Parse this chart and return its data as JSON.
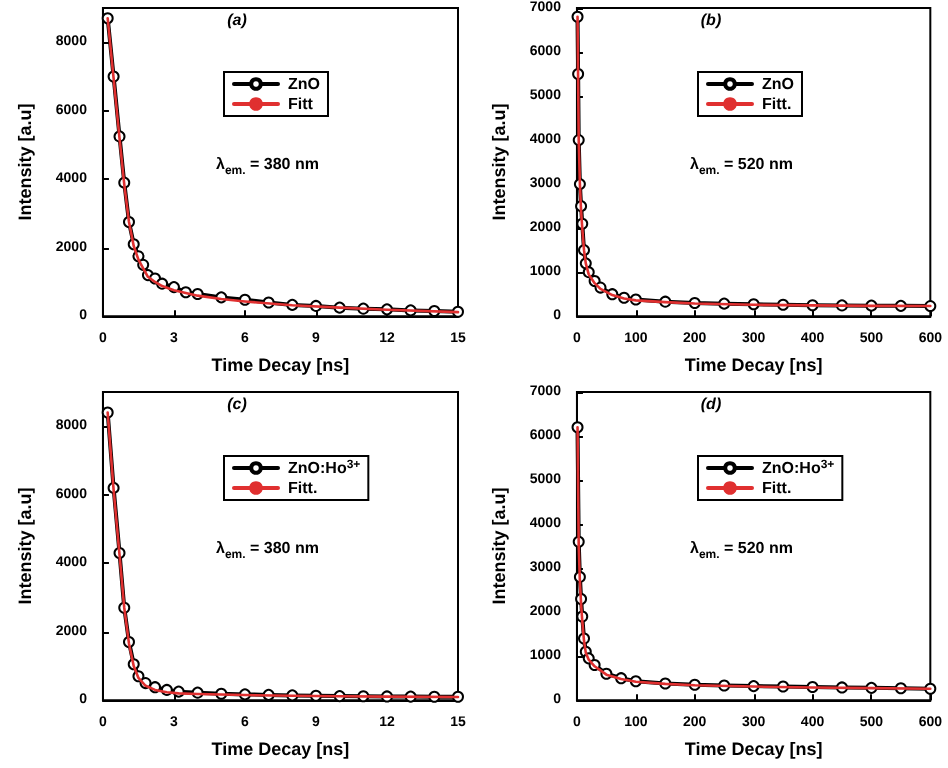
{
  "chart_data": [
    {
      "type": "line",
      "title": "(a)",
      "xlabel": "Time Decay [ns]",
      "ylabel": "Intensity [a.u]",
      "annotations": [
        "λ$_{em.}$ = 380 nm"
      ],
      "xlim": [
        0,
        15
      ],
      "xticks": [
        0,
        3,
        6,
        9,
        12,
        15
      ],
      "ylim": [
        0,
        9000
      ],
      "yticks": [
        0,
        2000,
        4000,
        6000,
        8000
      ],
      "legend": "top",
      "grid": false,
      "series": [
        {
          "name": "ZnO",
          "color": "#000000",
          "marker": "circle",
          "x": [
            0.2,
            0.45,
            0.7,
            0.9,
            1.1,
            1.3,
            1.5,
            1.7,
            1.9,
            2.2,
            2.5,
            3,
            3.5,
            4,
            5,
            6,
            7,
            8,
            9,
            10,
            11,
            12,
            13,
            14,
            15
          ],
          "values": [
            8700,
            7000,
            5250,
            3900,
            2750,
            2100,
            1750,
            1500,
            1200,
            1100,
            950,
            850,
            700,
            650,
            550,
            480,
            400,
            330,
            300,
            250,
            220,
            200,
            170,
            150,
            130
          ]
        },
        {
          "name": "Fitt",
          "color": "#e03030",
          "marker": "none",
          "x": [
            0.2,
            0.45,
            0.7,
            0.9,
            1.1,
            1.3,
            1.5,
            1.7,
            1.9,
            2.2,
            2.5,
            3,
            4,
            5,
            6,
            8,
            10,
            12,
            15
          ],
          "values": [
            8700,
            6950,
            5200,
            3850,
            2750,
            2050,
            1650,
            1400,
            1150,
            1000,
            880,
            760,
            600,
            500,
            430,
            320,
            250,
            190,
            120
          ]
        }
      ]
    },
    {
      "type": "line",
      "title": "(b)",
      "xlabel": "Time Decay [ns]",
      "ylabel": "Intensity [a.u]",
      "annotations": [
        "λ$_{em.}$ = 520 nm"
      ],
      "xlim": [
        0,
        600
      ],
      "xticks": [
        0,
        100,
        200,
        300,
        400,
        500,
        600
      ],
      "ylim": [
        0,
        7000
      ],
      "yticks": [
        0,
        1000,
        2000,
        3000,
        4000,
        5000,
        6000,
        7000
      ],
      "legend": "top",
      "grid": false,
      "series": [
        {
          "name": "ZnO",
          "color": "#000000",
          "marker": "circle",
          "x": [
            1,
            2,
            3,
            5,
            7,
            9,
            12,
            15,
            20,
            30,
            40,
            60,
            80,
            100,
            150,
            200,
            250,
            300,
            350,
            400,
            450,
            500,
            550,
            600
          ],
          "values": [
            6800,
            5500,
            4000,
            3000,
            2500,
            2100,
            1500,
            1200,
            1000,
            800,
            650,
            500,
            420,
            380,
            330,
            300,
            285,
            270,
            260,
            250,
            245,
            240,
            235,
            230
          ]
        },
        {
          "name": "Fitt.",
          "color": "#e03030",
          "marker": "none",
          "x": [
            1,
            2,
            3,
            5,
            7,
            9,
            12,
            15,
            20,
            30,
            40,
            60,
            80,
            100,
            150,
            200,
            300,
            400,
            500,
            600
          ],
          "values": [
            6800,
            5400,
            4000,
            3000,
            2400,
            2000,
            1500,
            1200,
            950,
            750,
            620,
            480,
            400,
            360,
            320,
            290,
            260,
            245,
            235,
            230
          ]
        }
      ]
    },
    {
      "type": "line",
      "title": "(c)",
      "xlabel": "Time Decay [ns]",
      "ylabel": "Intensity [a.u]",
      "annotations": [
        "λ$_{em.}$ = 380 nm"
      ],
      "xlim": [
        0,
        15
      ],
      "xticks": [
        0,
        3,
        6,
        9,
        12,
        15
      ],
      "ylim": [
        0,
        9000
      ],
      "yticks": [
        0,
        2000,
        4000,
        6000,
        8000
      ],
      "legend": "top",
      "grid": false,
      "series": [
        {
          "name": "ZnO:Ho$^{3+}$",
          "color": "#000000",
          "marker": "circle",
          "x": [
            0.2,
            0.45,
            0.7,
            0.9,
            1.1,
            1.3,
            1.5,
            1.8,
            2.2,
            2.7,
            3.2,
            4,
            5,
            6,
            7,
            8,
            9,
            10,
            11,
            12,
            13,
            14,
            15
          ],
          "values": [
            8400,
            6200,
            4300,
            2700,
            1700,
            1050,
            700,
            500,
            380,
            300,
            250,
            220,
            190,
            170,
            155,
            140,
            130,
            120,
            115,
            110,
            105,
            100,
            100
          ]
        },
        {
          "name": "Fitt.",
          "color": "#e03030",
          "marker": "none",
          "x": [
            0.2,
            0.45,
            0.7,
            0.9,
            1.1,
            1.3,
            1.5,
            1.8,
            2.2,
            2.7,
            3.2,
            4,
            6,
            8,
            10,
            12,
            15
          ],
          "values": [
            8400,
            6150,
            4250,
            2700,
            1650,
            1000,
            650,
            420,
            300,
            230,
            200,
            180,
            150,
            130,
            115,
            105,
            95
          ]
        }
      ]
    },
    {
      "type": "line",
      "title": "(d)",
      "xlabel": "Time Decay [ns]",
      "ylabel": "Intensity [a.u]",
      "annotations": [
        "λ$_{em.}$ = 520 nm"
      ],
      "xlim": [
        0,
        600
      ],
      "xticks": [
        0,
        100,
        200,
        300,
        400,
        500,
        600
      ],
      "ylim": [
        0,
        7000
      ],
      "yticks": [
        0,
        1000,
        2000,
        3000,
        4000,
        5000,
        6000,
        7000
      ],
      "legend": "top",
      "grid": false,
      "series": [
        {
          "name": "ZnO:Ho$^{3+}$",
          "color": "#000000",
          "marker": "circle",
          "x": [
            1,
            3,
            5,
            7,
            9,
            12,
            15,
            20,
            30,
            50,
            75,
            100,
            150,
            200,
            250,
            300,
            350,
            400,
            450,
            500,
            550,
            600
          ],
          "values": [
            6200,
            3600,
            2800,
            2300,
            1900,
            1400,
            1100,
            950,
            800,
            600,
            500,
            430,
            380,
            350,
            335,
            320,
            310,
            300,
            290,
            280,
            270,
            260
          ]
        },
        {
          "name": "Fitt.",
          "color": "#e03030",
          "marker": "none",
          "x": [
            1,
            3,
            5,
            7,
            9,
            12,
            15,
            20,
            30,
            50,
            75,
            100,
            150,
            200,
            300,
            400,
            500,
            600
          ],
          "values": [
            6200,
            3500,
            2700,
            2200,
            1800,
            1350,
            1080,
            920,
            770,
            580,
            480,
            420,
            370,
            340,
            310,
            290,
            275,
            260
          ]
        }
      ]
    }
  ]
}
